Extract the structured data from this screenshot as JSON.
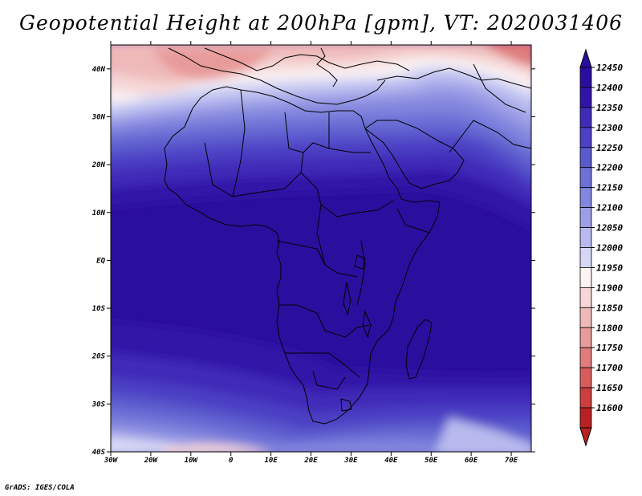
{
  "title": "Geopotential Height at 200hPa [gpm], VT: 2020031406",
  "credit": "GrADS: IGES/COLA",
  "map": {
    "lat_labels": [
      "40N",
      "30N",
      "20N",
      "10N",
      "EQ",
      "10S",
      "20S",
      "30S",
      "40S"
    ],
    "lat_values": [
      40,
      30,
      20,
      10,
      0,
      -10,
      -20,
      -30,
      -40
    ],
    "lon_labels": [
      "30W",
      "20W",
      "10W",
      "0",
      "10E",
      "20E",
      "30E",
      "40E",
      "50E",
      "60E",
      "70E"
    ],
    "lon_values": [
      -30,
      -20,
      -10,
      0,
      10,
      20,
      30,
      40,
      50,
      60,
      70
    ],
    "lon_range": [
      -30,
      75
    ],
    "lat_range": [
      -40,
      45
    ]
  },
  "colorbar": {
    "levels": [
      "12450",
      "12400",
      "12350",
      "12300",
      "12250",
      "12200",
      "12150",
      "12100",
      "12050",
      "12000",
      "11950",
      "11900",
      "11850",
      "11800",
      "11750",
      "11700",
      "11650",
      "11600"
    ],
    "colors": [
      "#2a0f9e",
      "#3215a8",
      "#3f2bb8",
      "#4c41c4",
      "#5b5acd",
      "#6d70d6",
      "#8386de",
      "#9c9ee6",
      "#b8baee",
      "#d6d7f5",
      "#fbf2f2",
      "#f6d6d6",
      "#efb9b9",
      "#e89b9b",
      "#e07c7c",
      "#d75d5d",
      "#cd3f3f",
      "#b82222"
    ]
  }
}
